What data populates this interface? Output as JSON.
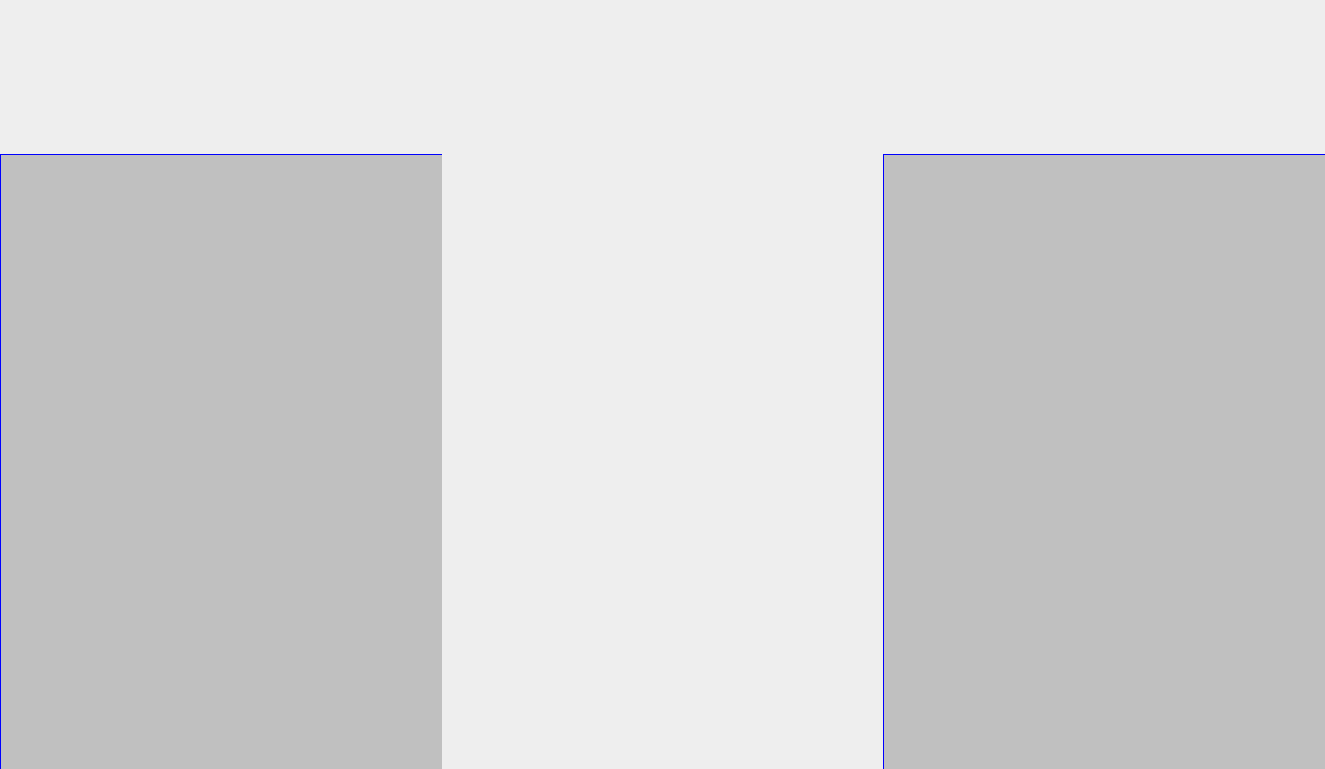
{
  "colors": {
    "background": "#eeeeee",
    "panel_fill": "#c0c0c0",
    "panel_border": "#0000ff"
  },
  "panels": [
    {
      "name": "left-panel"
    },
    {
      "name": "right-panel"
    }
  ]
}
